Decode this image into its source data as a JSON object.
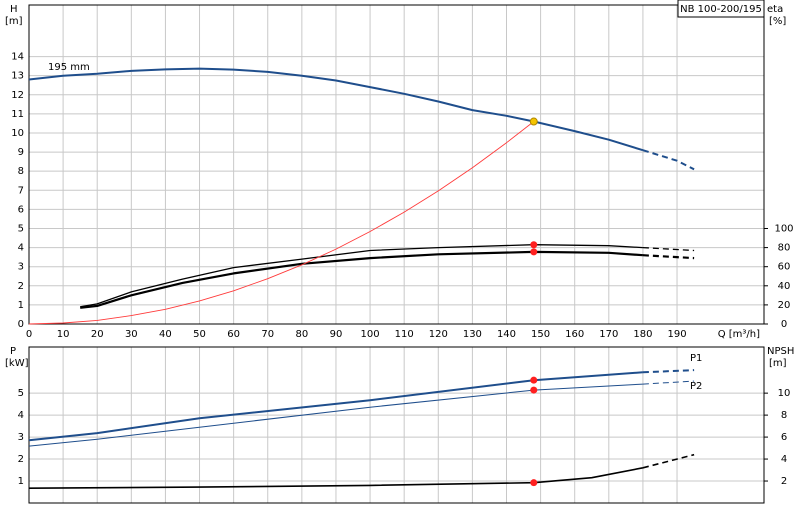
{
  "chart_data": [
    {
      "type": "line",
      "title": "NB 100-200/195",
      "ylabel": "H",
      "yunit": "[m]",
      "y2label": "eta",
      "y2unit": "[%]",
      "xlabel": "Q [m³/h]",
      "xlim": [
        0,
        215.5
      ],
      "xticks": [
        0,
        10,
        20,
        30,
        40,
        50,
        60,
        70,
        80,
        90,
        100,
        110,
        120,
        130,
        140,
        150,
        160,
        170,
        180,
        190
      ],
      "ylim": [
        0,
        16.7
      ],
      "yticks": [
        0,
        1,
        2,
        3,
        4,
        5,
        6,
        7,
        8,
        9,
        10,
        11,
        12,
        13,
        14
      ],
      "y2lim": [
        0,
        334
      ],
      "y2ticks": [
        0,
        20,
        40,
        60,
        80,
        100
      ],
      "grid": true,
      "series": [
        {
          "name": "195 mm",
          "color": "#1f4e8c",
          "width": 2,
          "dashed_from": 180,
          "x": [
            0,
            10,
            20,
            30,
            40,
            50,
            60,
            70,
            80,
            90,
            100,
            110,
            120,
            130,
            140,
            148,
            160,
            170,
            180,
            190,
            195
          ],
          "values": [
            12.8,
            13.0,
            13.1,
            13.25,
            13.33,
            13.37,
            13.32,
            13.2,
            13.0,
            12.75,
            12.4,
            12.05,
            11.65,
            11.2,
            10.9,
            10.6,
            10.1,
            9.65,
            9.1,
            8.55,
            8.1
          ]
        },
        {
          "color": "#000000",
          "width": 1.3,
          "axis": "y2",
          "dashed_from": 180,
          "x": [
            15,
            20,
            30,
            45,
            60,
            80,
            100,
            120,
            148,
            170,
            180,
            195
          ],
          "values": [
            18,
            21,
            33.6,
            47,
            59,
            68,
            77,
            80,
            83,
            82,
            80,
            77
          ]
        },
        {
          "color": "#000000",
          "width": 2.2,
          "axis": "y2",
          "dashed_from": 180,
          "x": [
            15,
            20,
            30,
            45,
            60,
            80,
            100,
            120,
            148,
            170,
            180,
            195
          ],
          "values": [
            17,
            19,
            30,
            43,
            53,
            63,
            69,
            73,
            75.5,
            74.5,
            72,
            69
          ]
        },
        {
          "color": "#ff3b3b",
          "width": 0.9,
          "x": [
            0,
            10,
            20,
            30,
            40,
            50,
            60,
            70,
            80,
            90,
            100,
            110,
            120,
            130,
            140,
            148
          ],
          "values": [
            0,
            0.05,
            0.19,
            0.44,
            0.77,
            1.21,
            1.74,
            2.37,
            3.1,
            3.92,
            4.84,
            5.86,
            6.97,
            8.18,
            9.49,
            10.6
          ]
        }
      ],
      "points": [
        {
          "x": 148,
          "y": 83,
          "axis": "y2",
          "color": "#ff2020"
        },
        {
          "x": 148,
          "y": 75.5,
          "axis": "y2",
          "color": "#ff2020"
        },
        {
          "x": 148,
          "y": 10.6,
          "color": "#f5c400"
        }
      ]
    },
    {
      "type": "line",
      "ylabel": "P",
      "yunit": "[kW]",
      "y2label": "NPSH",
      "y2unit": "[m]",
      "xlim": [
        0,
        215.5
      ],
      "xticks": [
        0,
        10,
        20,
        30,
        40,
        50,
        60,
        70,
        80,
        90,
        100,
        110,
        120,
        130,
        140,
        150,
        160,
        170,
        180,
        190
      ],
      "ylim": [
        0,
        7.1
      ],
      "yticks": [
        1,
        2,
        3,
        4,
        5
      ],
      "y2lim": [
        0,
        14.2
      ],
      "y2ticks": [
        2,
        4,
        6,
        8,
        10
      ],
      "grid": true,
      "series": [
        {
          "name": "P1",
          "color": "#1f4e8c",
          "width": 2,
          "dashed_from": 180,
          "x": [
            0,
            20,
            50,
            100,
            148,
            180,
            195
          ],
          "values": [
            2.86,
            3.18,
            3.86,
            4.68,
            5.59,
            5.95,
            6.05
          ]
        },
        {
          "name": "P2",
          "color": "#1f4e8c",
          "width": 1,
          "dashed_from": 180,
          "x": [
            0,
            20,
            50,
            100,
            148,
            180,
            195
          ],
          "values": [
            2.59,
            2.9,
            3.45,
            4.36,
            5.14,
            5.41,
            5.55
          ]
        },
        {
          "color": "#000000",
          "width": 1.6,
          "axis": "y2",
          "dashed_from": 180,
          "x": [
            0,
            50,
            100,
            148,
            165,
            180,
            195
          ],
          "values": [
            1.35,
            1.45,
            1.6,
            1.85,
            2.3,
            3.2,
            4.4
          ]
        }
      ],
      "points": [
        {
          "x": 148,
          "y": 5.59,
          "color": "#ff2020"
        },
        {
          "x": 148,
          "y": 5.14,
          "color": "#ff2020"
        },
        {
          "x": 148,
          "y": 1.85,
          "axis": "y2",
          "color": "#ff2020"
        }
      ]
    }
  ]
}
